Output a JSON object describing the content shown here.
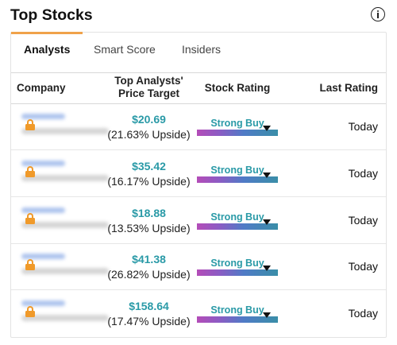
{
  "widget": {
    "title": "Top Stocks"
  },
  "tabs": [
    {
      "label": "Analysts"
    },
    {
      "label": "Smart Score"
    },
    {
      "label": "Insiders"
    }
  ],
  "columns": {
    "company": "Company",
    "price_target_line1": "Top Analysts'",
    "price_target_line2": "Price Target",
    "rating": "Stock Rating",
    "last": "Last Rating"
  },
  "rows": [
    {
      "price": "$20.69",
      "upside": "(21.63% Upside)",
      "rating": "Strong Buy",
      "rating_level": 0.86,
      "last": "Today"
    },
    {
      "price": "$35.42",
      "upside": "(16.17% Upside)",
      "rating": "Strong Buy",
      "rating_level": 0.86,
      "last": "Today"
    },
    {
      "price": "$18.88",
      "upside": "(13.53% Upside)",
      "rating": "Strong Buy",
      "rating_level": 0.86,
      "last": "Today"
    },
    {
      "price": "$41.38",
      "upside": "(26.82% Upside)",
      "rating": "Strong Buy",
      "rating_level": 0.86,
      "last": "Today"
    },
    {
      "price": "$158.64",
      "upside": "(17.47% Upside)",
      "rating": "Strong Buy",
      "rating_level": 0.86,
      "last": "Today"
    }
  ],
  "colors": {
    "accent": "#f0a24a",
    "price": "#2a9aa7",
    "lock": "#f09a2a"
  }
}
